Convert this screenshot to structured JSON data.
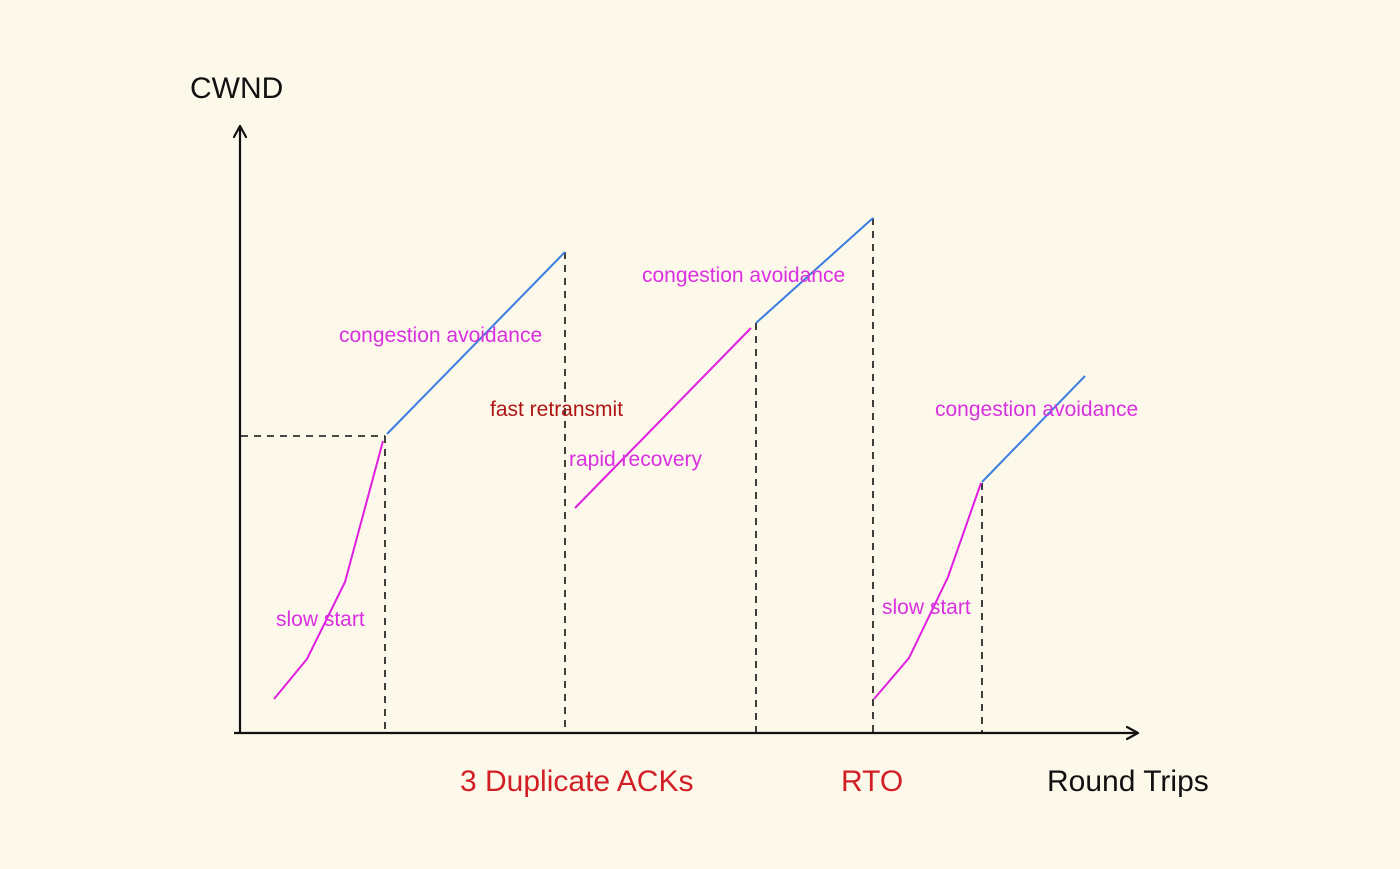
{
  "axes": {
    "y_label": "CWND",
    "x_label": "Round Trips"
  },
  "events": {
    "dup_acks": "3 Duplicate ACKs",
    "rto": "RTO"
  },
  "phases": {
    "slow_start_1": "slow start",
    "congestion_avoidance_1": "congestion avoidance",
    "fast_retransmit": "fast retransmit",
    "rapid_recovery": "rapid recovery",
    "congestion_avoidance_2": "congestion avoidance",
    "slow_start_2": "slow start",
    "congestion_avoidance_3": "congestion avoidance"
  },
  "colors": {
    "background": "#fcf8ea",
    "axis": "#111111",
    "congestion_avoidance_line": "#3b7de0",
    "growth_line": "#e01ee0",
    "phase_text": "#d930e0",
    "event_text": "#d21f26",
    "fast_retransmit_text": "#b01515",
    "dashed_guides": "#111111"
  }
}
